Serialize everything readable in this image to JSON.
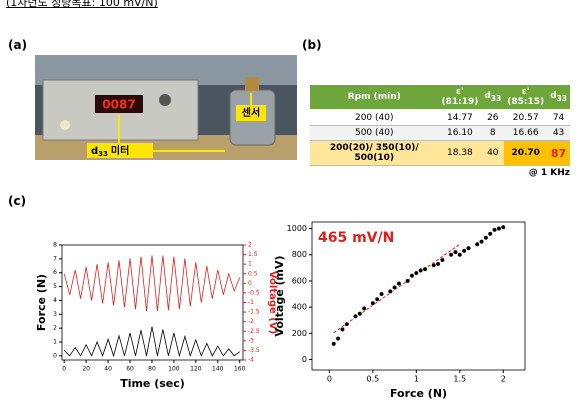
{
  "header": {
    "note": "(1차년도 정량목표: 100 mV/N)"
  },
  "panel_a": {
    "label": "(a)",
    "display": "0087",
    "sensor_label": "센서",
    "meter_label": {
      "symbol": "d",
      "subscript": "33",
      "text": "미터"
    }
  },
  "panel_b": {
    "label": "(b)",
    "table": {
      "header": [
        "Rpm (min)",
        {
          "text": "ε'",
          "line2": "(81:19)"
        },
        {
          "text": "d",
          "sub": "33"
        },
        {
          "text": "ε'",
          "line2": "(85:15)"
        },
        {
          "text": "d",
          "sub": "33"
        }
      ],
      "rows": [
        [
          "200 (40)",
          "14.77",
          "26",
          "20.57",
          "74"
        ],
        [
          "500 (40)",
          "16.10",
          "8",
          "16.66",
          "43"
        ],
        [
          "200(20)/ 350(10)/ 500(10)",
          "18.38",
          "40",
          "20.70",
          "87"
        ]
      ]
    },
    "note": "@ 1 KHz"
  },
  "panel_c": {
    "label": "(c)"
  },
  "chart_data": [
    {
      "type": "line",
      "xlabel": "Time (sec)",
      "ylabel": "Force (N)",
      "y2label": "Voltage (V)",
      "x": [
        0,
        5,
        10,
        15,
        20,
        25,
        30,
        35,
        40,
        45,
        50,
        55,
        60,
        65,
        70,
        75,
        80,
        85,
        90,
        95,
        100,
        105,
        110,
        115,
        120,
        125,
        130,
        135,
        140,
        145,
        150,
        155,
        160
      ],
      "series": [
        {
          "color": "#000000",
          "values": [
            0.4,
            0,
            0.6,
            0,
            0.8,
            0,
            1.0,
            0,
            1.2,
            0,
            1.45,
            0,
            1.65,
            0,
            1.85,
            0,
            2.1,
            0,
            1.9,
            0,
            1.65,
            0,
            1.4,
            0,
            1.15,
            0,
            0.9,
            0,
            0.7,
            0,
            0.5,
            0,
            0.3
          ]
        },
        {
          "color": "#e0201b",
          "axis": "y2",
          "values": [
            0.5,
            -0.6,
            0.7,
            -0.8,
            0.85,
            -0.9,
            1.0,
            -1.05,
            1.1,
            -1.15,
            1.2,
            -1.25,
            1.3,
            -1.35,
            1.4,
            -1.45,
            1.45,
            -1.45,
            1.45,
            -1.4,
            1.4,
            -1.35,
            1.3,
            -1.2,
            1.1,
            -1.0,
            0.9,
            -0.8,
            0.7,
            -0.6,
            0.5,
            -0.4,
            0.3
          ]
        }
      ],
      "xlim": [
        -2,
        163
      ],
      "xticks": [
        0,
        20,
        40,
        60,
        80,
        100,
        120,
        140,
        160
      ],
      "ylim": [
        -0.3,
        8
      ],
      "yticks": [
        0,
        1,
        2,
        3,
        4,
        5,
        6,
        7,
        8
      ],
      "y2lim": [
        -4,
        2
      ],
      "y2ticks": [
        -4,
        -3.5,
        -3,
        -2.5,
        -2,
        -1.5,
        -1,
        -0.5,
        0,
        0.5,
        1,
        1.5,
        2
      ]
    },
    {
      "type": "scatter",
      "xlabel": "Force (N)",
      "ylabel": "Voltage (mV)",
      "annotation": "465 mV/N",
      "annotation_color": "#e0201b",
      "x": [
        0.05,
        0.1,
        0.15,
        0.2,
        0.3,
        0.35,
        0.4,
        0.5,
        0.55,
        0.6,
        0.7,
        0.75,
        0.8,
        0.9,
        0.95,
        1.0,
        1.05,
        1.1,
        1.2,
        1.25,
        1.3,
        1.4,
        1.45,
        1.5,
        1.55,
        1.6,
        1.7,
        1.75,
        1.8,
        1.85,
        1.9,
        1.95,
        2.0
      ],
      "values": [
        120,
        160,
        230,
        270,
        330,
        350,
        390,
        430,
        460,
        500,
        520,
        550,
        580,
        600,
        640,
        660,
        680,
        690,
        720,
        730,
        760,
        800,
        820,
        800,
        830,
        850,
        880,
        900,
        930,
        960,
        990,
        1000,
        1010
      ],
      "color": "#000000",
      "fit": {
        "x": [
          0.05,
          1.5
        ],
        "values": [
          205,
          880
        ],
        "color": "#e0201b",
        "style": "dashed"
      },
      "xlim": [
        -0.2,
        2.25
      ],
      "xticks": [
        0,
        0.5,
        1,
        1.5,
        2
      ],
      "ylim": [
        -80,
        1050
      ],
      "yticks": [
        0,
        200,
        400,
        600,
        800,
        1000
      ]
    }
  ]
}
